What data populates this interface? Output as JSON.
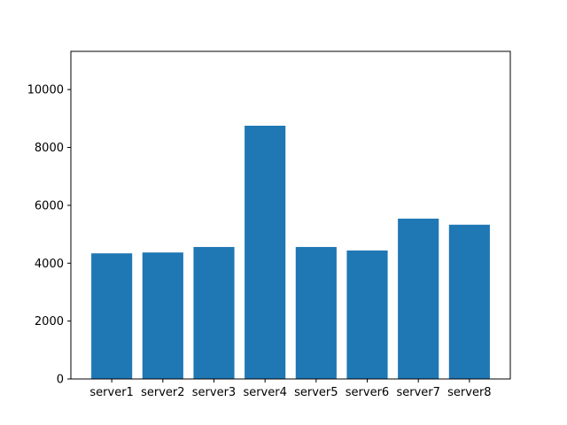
{
  "chart_data": {
    "type": "bar",
    "categories": [
      "server1",
      "server2",
      "server3",
      "server4",
      "server5",
      "server6",
      "server7",
      "server8"
    ],
    "values": [
      4340,
      4370,
      4560,
      8750,
      4560,
      4440,
      5540,
      5330
    ],
    "ylim": [
      0,
      11320
    ],
    "yticks": [
      0,
      2000,
      4000,
      6000,
      8000,
      10000
    ],
    "bar_color": "#1f77b4",
    "grid": false,
    "legend": "none"
  }
}
